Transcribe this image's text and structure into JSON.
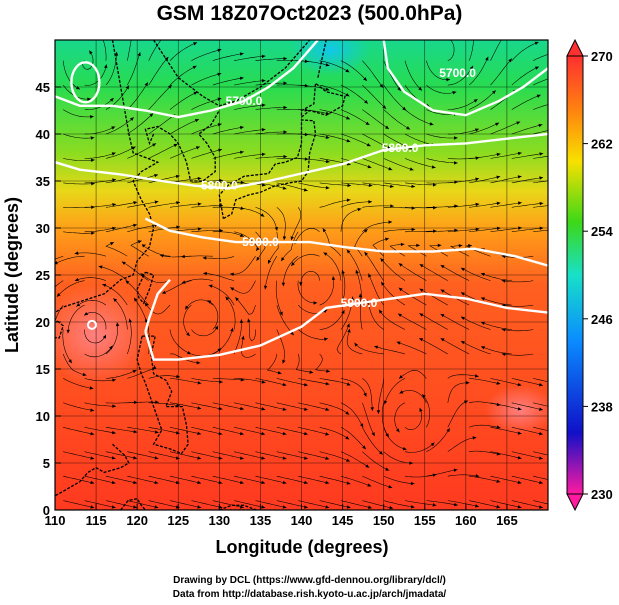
{
  "title": "GSM 18Z07Oct2023 (500.0hPa)",
  "credits": [
    "Drawing by DCL (https://www.gfd-dennou.org/library/dcl/)",
    "Data from http://database.rish.kyoto-u.ac.jp/arch/jmadata/"
  ],
  "chart_data": {
    "type": "heatmap",
    "xlabel": "Longitude (degrees)",
    "ylabel": "Latitude  (degrees)",
    "xlim": [
      110,
      170
    ],
    "ylim": [
      0,
      50
    ],
    "x_ticks": [
      110,
      115,
      120,
      125,
      130,
      135,
      140,
      145,
      150,
      155,
      160,
      165
    ],
    "y_ticks": [
      0,
      5,
      10,
      15,
      20,
      25,
      30,
      35,
      40,
      45
    ],
    "colorbar": {
      "ticks": [
        230,
        238,
        246,
        254,
        262,
        270
      ],
      "range": [
        230,
        270
      ],
      "colors": [
        "#ff1aa0",
        "#1010c8",
        "#0a8cff",
        "#18e0c8",
        "#3cd818",
        "#f8e000",
        "#ff8010",
        "#ff3030"
      ]
    },
    "contour_labels": [
      {
        "text": "5700.0",
        "lon": 133,
        "lat": 43.5
      },
      {
        "text": "5700.0",
        "lon": 159,
        "lat": 46.5
      },
      {
        "text": "5800.0",
        "lon": 152,
        "lat": 38.5
      },
      {
        "text": "5800.0",
        "lon": 130,
        "lat": 34.5
      },
      {
        "text": "5900.0",
        "lon": 135,
        "lat": 28.5
      },
      {
        "text": "5900.0",
        "lon": 147,
        "lat": 22
      }
    ]
  }
}
